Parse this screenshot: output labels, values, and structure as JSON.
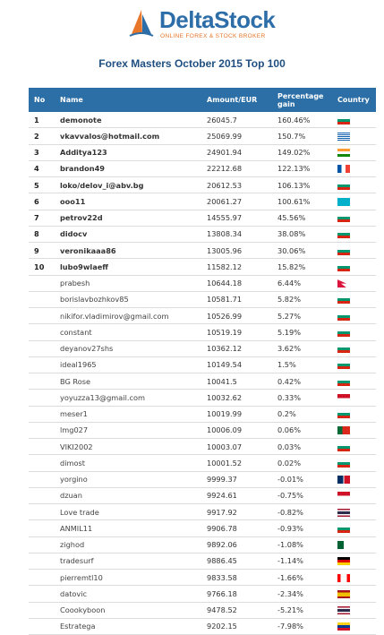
{
  "brand": {
    "name_part1": "Delta",
    "name_part2": "Stock",
    "tagline": "ONLINE FOREX & STOCK BROKER",
    "colors": {
      "blue": "#2d6ea8",
      "orange": "#e8762b"
    }
  },
  "title": "Forex Masters October 2015 Top 100",
  "table": {
    "headers": {
      "no": "No",
      "name": "Name",
      "amount": "Amount/EUR",
      "pct": "Percentage gain",
      "country": "Country"
    },
    "rows": [
      {
        "no": "1",
        "name": "demonote",
        "amount": "26045.7",
        "pct": "160.46%",
        "flag": "bulgaria"
      },
      {
        "no": "2",
        "name": "vkavvalos@hotmail.com",
        "amount": "25069.99",
        "pct": "150.7%",
        "flag": "greece"
      },
      {
        "no": "3",
        "name": "Additya123",
        "amount": "24901.94",
        "pct": "149.02%",
        "flag": "india"
      },
      {
        "no": "4",
        "name": "brandon49",
        "amount": "22212.68",
        "pct": "122.13%",
        "flag": "france"
      },
      {
        "no": "5",
        "name": "loko/delov_i@abv.bg",
        "amount": "20612.53",
        "pct": "106.13%",
        "flag": "bulgaria"
      },
      {
        "no": "6",
        "name": "ooo11",
        "amount": "20061.27",
        "pct": "100.61%",
        "flag": "kazakhstan"
      },
      {
        "no": "7",
        "name": "petrov22d",
        "amount": "14555.97",
        "pct": "45.56%",
        "flag": "bulgaria"
      },
      {
        "no": "8",
        "name": "didocv",
        "amount": "13808.34",
        "pct": "38.08%",
        "flag": "bulgaria"
      },
      {
        "no": "9",
        "name": "veronikaaa86",
        "amount": "13005.96",
        "pct": "30.06%",
        "flag": "bulgaria"
      },
      {
        "no": "10",
        "name": "lubo9wlaeff",
        "amount": "11582.12",
        "pct": "15.82%",
        "flag": "bulgaria"
      },
      {
        "no": "",
        "name": "prabesh",
        "amount": "10644.18",
        "pct": "6.44%",
        "flag": "nepal"
      },
      {
        "no": "",
        "name": "borislavbozhkov85",
        "amount": "10581.71",
        "pct": "5.82%",
        "flag": "bulgaria"
      },
      {
        "no": "",
        "name": "nikifor.vladimirov@gmail.com",
        "amount": "10526.99",
        "pct": "5.27%",
        "flag": "bulgaria"
      },
      {
        "no": "",
        "name": "constant",
        "amount": "10519.19",
        "pct": "5.19%",
        "flag": "bulgaria"
      },
      {
        "no": "",
        "name": "deyanov27shs",
        "amount": "10362.12",
        "pct": "3.62%",
        "flag": "bulgaria"
      },
      {
        "no": "",
        "name": "ideal1965",
        "amount": "10149.54",
        "pct": "1.5%",
        "flag": "bulgaria"
      },
      {
        "no": "",
        "name": "BG Rose",
        "amount": "10041.5",
        "pct": "0.42%",
        "flag": "bulgaria"
      },
      {
        "no": "",
        "name": "yoyuzza13@gmail.com",
        "amount": "10032.62",
        "pct": "0.33%",
        "flag": "indonesia"
      },
      {
        "no": "",
        "name": "meser1",
        "amount": "10019.99",
        "pct": "0.2%",
        "flag": "bulgaria"
      },
      {
        "no": "",
        "name": "lmg027",
        "amount": "10006.09",
        "pct": "0.06%",
        "flag": "portugal"
      },
      {
        "no": "",
        "name": "VIKI2002",
        "amount": "10003.07",
        "pct": "0.03%",
        "flag": "bulgaria"
      },
      {
        "no": "",
        "name": "dimost",
        "amount": "10001.52",
        "pct": "0.02%",
        "flag": "bulgaria"
      },
      {
        "no": "",
        "name": "yorgino",
        "amount": "9999.37",
        "pct": "-0.01%",
        "flag": "dominican"
      },
      {
        "no": "",
        "name": "dzuan",
        "amount": "9924.61",
        "pct": "-0.75%",
        "flag": "indonesia"
      },
      {
        "no": "",
        "name": "Love trade",
        "amount": "9917.92",
        "pct": "-0.82%",
        "flag": "thailand"
      },
      {
        "no": "",
        "name": "ANMIL11",
        "amount": "9906.78",
        "pct": "-0.93%",
        "flag": "bulgaria"
      },
      {
        "no": "",
        "name": "zighod",
        "amount": "9892.06",
        "pct": "-1.08%",
        "flag": "algeria"
      },
      {
        "no": "",
        "name": "tradesurf",
        "amount": "9886.45",
        "pct": "-1.14%",
        "flag": "germany"
      },
      {
        "no": "",
        "name": "pierremtl10",
        "amount": "9833.58",
        "pct": "-1.66%",
        "flag": "canada"
      },
      {
        "no": "",
        "name": "datovic",
        "amount": "9766.18",
        "pct": "-2.34%",
        "flag": "spain"
      },
      {
        "no": "",
        "name": "Coookyboon",
        "amount": "9478.52",
        "pct": "-5.21%",
        "flag": "thailand"
      },
      {
        "no": "",
        "name": "Estratega",
        "amount": "9202.15",
        "pct": "-7.98%",
        "flag": "colombia"
      }
    ]
  },
  "flag_colors": {
    "bulgaria": [
      "#ffffff",
      "#00966e",
      "#d62612"
    ],
    "greece": [
      "#0d5eaf",
      "#ffffff"
    ],
    "india": [
      "#ff9933",
      "#ffffff",
      "#138808"
    ],
    "france": [
      "#0055a4",
      "#ffffff",
      "#ef4135"
    ],
    "kazakhstan": [
      "#00afca",
      "#fec50c"
    ],
    "nepal": [
      "#dc143c",
      "#003893"
    ],
    "indonesia": [
      "#ce1126",
      "#ffffff"
    ],
    "portugal": [
      "#046a38",
      "#da291c"
    ],
    "dominican": [
      "#002d62",
      "#ce1126",
      "#ffffff"
    ],
    "thailand": [
      "#a51931",
      "#f4f5f8",
      "#2d2a4a"
    ],
    "algeria": [
      "#006233",
      "#ffffff",
      "#d21034"
    ],
    "germany": [
      "#000000",
      "#dd0000",
      "#ffce00"
    ],
    "canada": [
      "#ff0000",
      "#ffffff"
    ],
    "spain": [
      "#aa151b",
      "#f1bf00"
    ],
    "colombia": [
      "#fcd116",
      "#003893",
      "#ce1126"
    ]
  }
}
